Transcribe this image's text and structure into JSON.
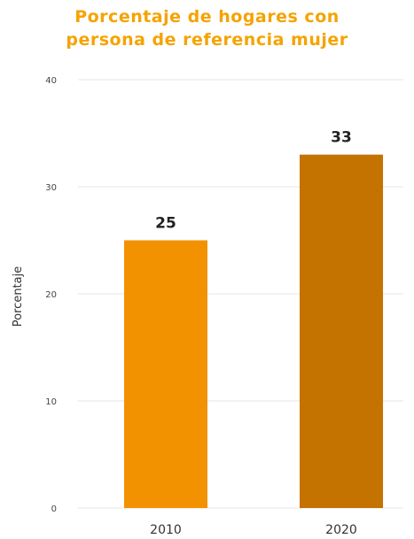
{
  "chart_data": {
    "type": "bar",
    "title_lines": [
      "Porcentaje de hogares con",
      "persona de referencia mujer"
    ],
    "ylabel": "Porcentaje",
    "xlabel": "",
    "categories": [
      "2010",
      "2020"
    ],
    "values": [
      25,
      33
    ],
    "data_labels": [
      "25",
      "33"
    ],
    "bar_colors": [
      "#f39200",
      "#c47200"
    ],
    "title_color": "#f5a300",
    "ylim": [
      0,
      40
    ],
    "yticks": [
      0,
      10,
      20,
      30,
      40
    ],
    "grid": true,
    "legend": "none"
  }
}
